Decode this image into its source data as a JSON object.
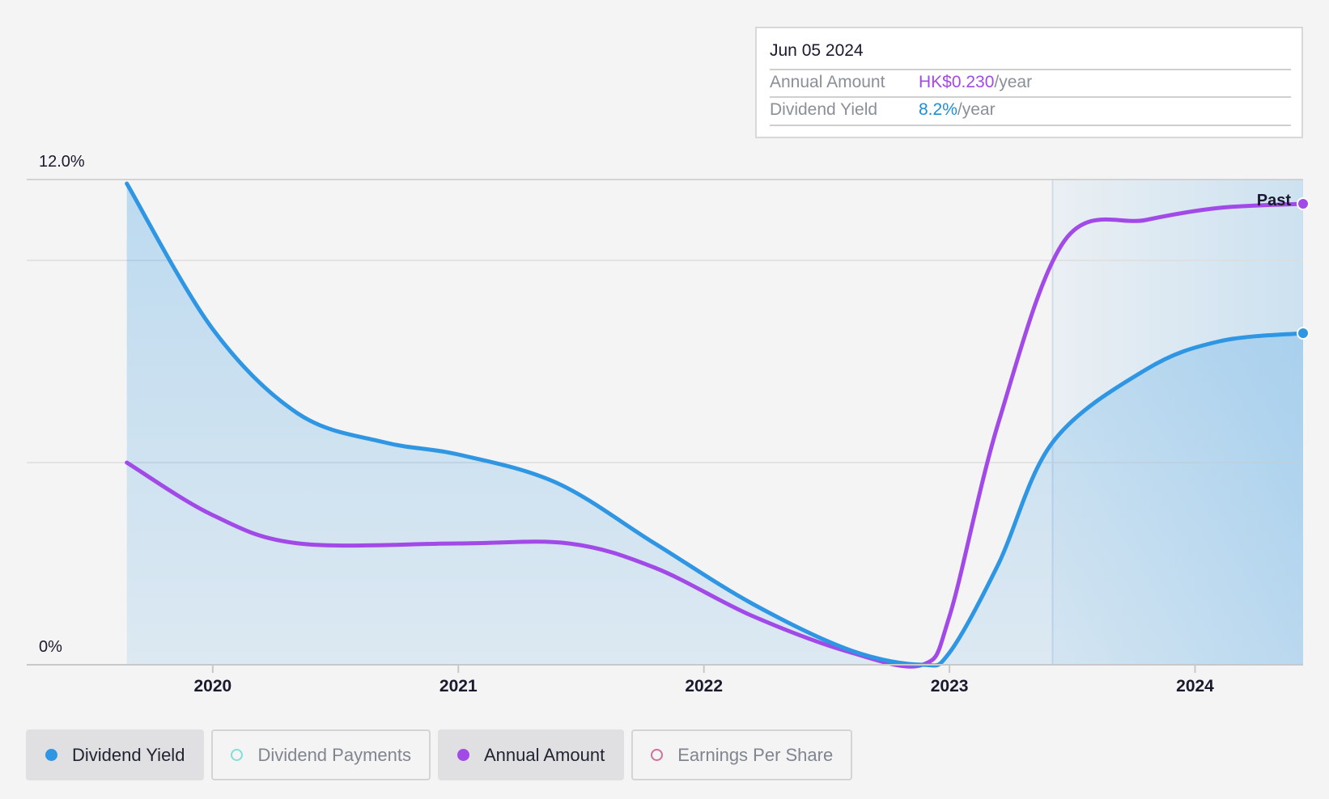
{
  "colors": {
    "yield": "#2e96e2",
    "annual": "#a24ae8",
    "payments": "#7fe0d8",
    "eps": "#d0709a",
    "text_dark": "#1a1a2e",
    "text_muted": "#8a8f98"
  },
  "tooltip": {
    "date": "Jun 05 2024",
    "annual_label": "Annual Amount",
    "annual_value": "HK$0.230",
    "annual_unit": "/year",
    "yield_label": "Dividend Yield",
    "yield_value": "8.2%",
    "yield_unit": "/year"
  },
  "chart_data": {
    "type": "line",
    "y_top_label": "12.0%",
    "y_bottom_label": "0%",
    "ylim": [
      0,
      12
    ],
    "xlim": [
      2019.45,
      2024.44
    ],
    "x_ticks": [
      "2020",
      "2021",
      "2022",
      "2023",
      "2024"
    ],
    "past_label": "Past",
    "past_start": 2023.42,
    "grid": true,
    "series": [
      {
        "name": "Dividend Yield",
        "color": "#2e96e2",
        "area": true,
        "points": [
          [
            2019.65,
            11.9
          ],
          [
            2020.0,
            8.3
          ],
          [
            2020.35,
            6.2
          ],
          [
            2020.7,
            5.5
          ],
          [
            2021.0,
            5.2
          ],
          [
            2021.4,
            4.5
          ],
          [
            2021.8,
            3.0
          ],
          [
            2022.2,
            1.5
          ],
          [
            2022.6,
            0.35
          ],
          [
            2022.89,
            0.0
          ],
          [
            2023.0,
            0.3
          ],
          [
            2023.2,
            2.5
          ],
          [
            2023.42,
            5.5
          ],
          [
            2023.8,
            7.3
          ],
          [
            2024.1,
            8.0
          ],
          [
            2024.44,
            8.2
          ]
        ]
      },
      {
        "name": "Annual Amount",
        "color": "#a24ae8",
        "area": false,
        "points": [
          [
            2019.65,
            5.0
          ],
          [
            2020.0,
            3.7
          ],
          [
            2020.35,
            3.0
          ],
          [
            2021.0,
            3.0
          ],
          [
            2021.45,
            3.0
          ],
          [
            2021.8,
            2.4
          ],
          [
            2022.2,
            1.2
          ],
          [
            2022.6,
            0.3
          ],
          [
            2022.89,
            0.0
          ],
          [
            2023.0,
            1.2
          ],
          [
            2023.2,
            6.0
          ],
          [
            2023.47,
            10.5
          ],
          [
            2023.8,
            11.0
          ],
          [
            2024.1,
            11.3
          ],
          [
            2024.44,
            11.4
          ]
        ]
      }
    ],
    "legend": [
      {
        "label": "Dividend Yield",
        "state": "active",
        "marker": "filled",
        "color": "#2e96e2"
      },
      {
        "label": "Dividend Payments",
        "state": "inactive",
        "marker": "hollow",
        "color": "#7fe0d8"
      },
      {
        "label": "Annual Amount",
        "state": "active",
        "marker": "filled",
        "color": "#a24ae8"
      },
      {
        "label": "Earnings Per Share",
        "state": "inactive",
        "marker": "hollow",
        "color": "#d0709a"
      }
    ]
  }
}
